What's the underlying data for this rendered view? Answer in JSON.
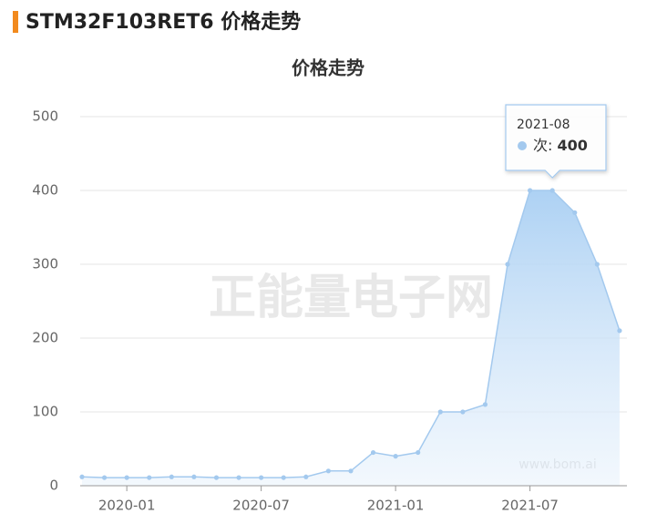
{
  "header": {
    "title": "STM32F103RET6 价格走势"
  },
  "chart_data": {
    "type": "area",
    "title": "价格走势",
    "categories": [
      null,
      null,
      "2020-01",
      null,
      null,
      null,
      null,
      null,
      "2020-07",
      null,
      null,
      null,
      null,
      null,
      "2021-01",
      null,
      null,
      null,
      null,
      null,
      "2021-07",
      null,
      null,
      null,
      null
    ],
    "series": [
      {
        "name": "次",
        "color": "#a3c9ee",
        "values": [
          12,
          11,
          11,
          11,
          12,
          12,
          11,
          11,
          11,
          11,
          12,
          20,
          20,
          45,
          40,
          45,
          100,
          100,
          110,
          300,
          400,
          400,
          370,
          300,
          210
        ]
      }
    ],
    "ylim": [
      0,
      500
    ],
    "yticks": [
      0,
      100,
      200,
      300,
      400,
      500
    ],
    "grid": true,
    "tooltip": {
      "category": "2021-08",
      "index": 21
    },
    "watermark": "正能量电子网",
    "credit": "www.bom.ai"
  }
}
